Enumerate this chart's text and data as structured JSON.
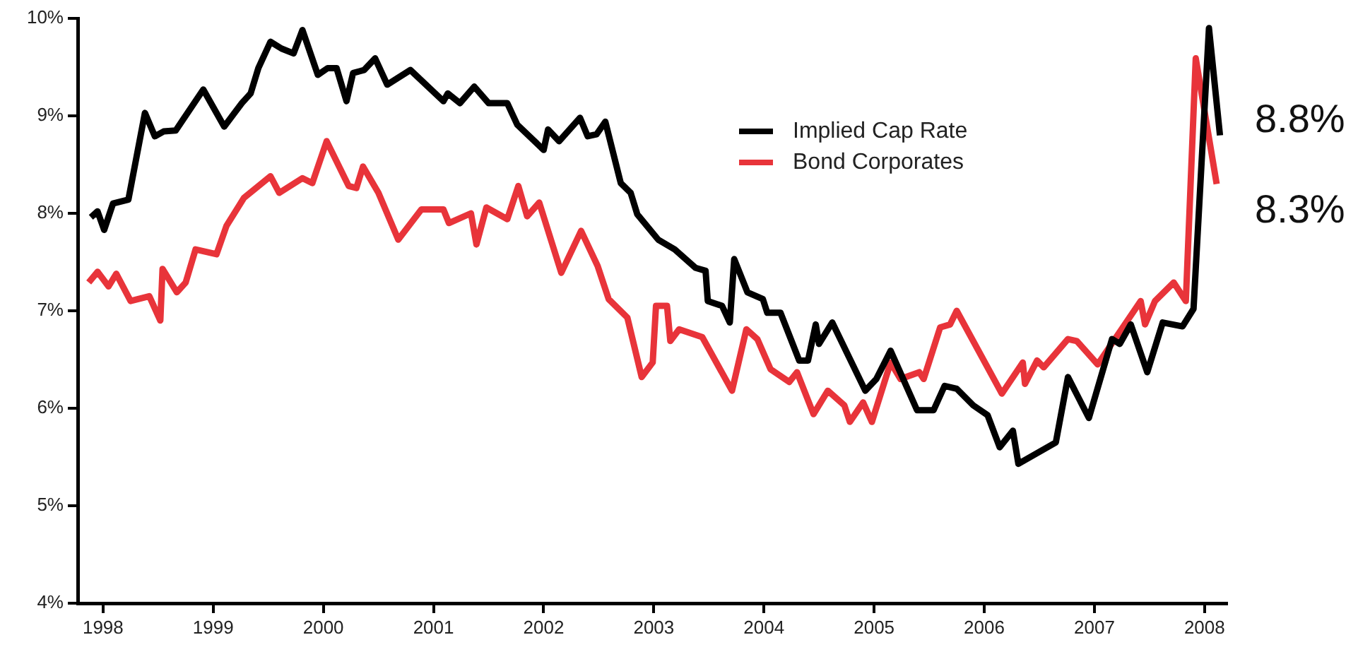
{
  "chart_data": {
    "type": "line",
    "xlim": [
      1997.77,
      2008.2
    ],
    "xticks": [
      1998,
      1999,
      2000,
      2001,
      2002,
      2003,
      2004,
      2005,
      2006,
      2007,
      2008
    ],
    "ylim": [
      4,
      10
    ],
    "yticks": [
      {
        "value": 4,
        "label": "4%"
      },
      {
        "value": 5,
        "label": "5%"
      },
      {
        "value": 6,
        "label": "6%"
      },
      {
        "value": 7,
        "label": "7%"
      },
      {
        "value": 8,
        "label": "8%"
      },
      {
        "value": 9,
        "label": "9%"
      },
      {
        "value": 10,
        "label": "10%"
      }
    ],
    "grid": false,
    "legend": "top right",
    "marker": "none",
    "line_style": "solid",
    "annotations": [
      "8.8%",
      "8.3%"
    ],
    "series": [
      {
        "name": "Implied Cap Rate",
        "color": "#000000",
        "x": [
          1997.89,
          1997.95,
          1998.01,
          1998.09,
          1998.23,
          1998.38,
          1998.47,
          1998.55,
          1998.66,
          1998.91,
          1999.1,
          1999.26,
          1999.34,
          1999.41,
          1999.52,
          1999.62,
          1999.73,
          1999.81,
          1999.95,
          2000.04,
          2000.12,
          2000.21,
          2000.27,
          2000.37,
          2000.47,
          2000.58,
          2000.79,
          2001.09,
          2001.13,
          2001.24,
          2001.37,
          2001.5,
          2001.67,
          2001.76,
          2002.0,
          2002.04,
          2002.14,
          2002.33,
          2002.4,
          2002.48,
          2002.56,
          2002.7,
          2002.79,
          2002.85,
          2003.04,
          2003.19,
          2003.38,
          2003.47,
          2003.49,
          2003.62,
          2003.69,
          2003.73,
          2003.85,
          2003.99,
          2004.03,
          2004.15,
          2004.32,
          2004.4,
          2004.47,
          2004.5,
          2004.62,
          2004.92,
          2005.02,
          2005.15,
          2005.39,
          2005.54,
          2005.64,
          2005.75,
          2005.9,
          2006.03,
          2006.14,
          2006.26,
          2006.31,
          2006.65,
          2006.76,
          2006.95,
          2007.16,
          2007.23,
          2007.33,
          2007.48,
          2007.62,
          2007.8,
          2007.9,
          2008.04,
          2008.14
        ],
        "values": [
          7.96,
          8.02,
          7.83,
          8.1,
          8.14,
          9.03,
          8.79,
          8.84,
          8.85,
          9.27,
          8.89,
          9.13,
          9.23,
          9.49,
          9.76,
          9.69,
          9.64,
          9.88,
          9.42,
          9.49,
          9.49,
          9.15,
          9.44,
          9.47,
          9.59,
          9.32,
          9.47,
          9.15,
          9.23,
          9.13,
          9.3,
          9.13,
          9.13,
          8.91,
          8.65,
          8.86,
          8.74,
          8.98,
          8.79,
          8.81,
          8.94,
          8.31,
          8.21,
          7.99,
          7.73,
          7.63,
          7.44,
          7.41,
          7.1,
          7.05,
          6.88,
          7.53,
          7.19,
          7.12,
          6.98,
          6.98,
          6.49,
          6.49,
          6.86,
          6.66,
          6.88,
          6.18,
          6.3,
          6.59,
          5.98,
          5.98,
          6.23,
          6.2,
          6.03,
          5.93,
          5.6,
          5.77,
          5.43,
          5.65,
          6.32,
          5.9,
          6.71,
          6.66,
          6.86,
          6.37,
          6.88,
          6.84,
          7.02,
          9.9,
          8.8
        ]
      },
      {
        "name": "Bond Corporates",
        "color": "#e8343a",
        "x": [
          1997.87,
          1997.95,
          1998.05,
          1998.12,
          1998.25,
          1998.42,
          1998.52,
          1998.54,
          1998.67,
          1998.75,
          1998.84,
          1999.03,
          1999.12,
          1999.28,
          1999.52,
          1999.6,
          1999.81,
          1999.9,
          2000.03,
          2000.23,
          2000.3,
          2000.36,
          2000.5,
          2000.68,
          2000.89,
          2001.09,
          2001.14,
          2001.34,
          2001.39,
          2001.48,
          2001.67,
          2001.77,
          2001.85,
          2001.96,
          2002.16,
          2002.34,
          2002.49,
          2002.59,
          2002.76,
          2002.89,
          2002.99,
          2003.02,
          2003.12,
          2003.15,
          2003.23,
          2003.44,
          2003.71,
          2003.84,
          2003.94,
          2004.06,
          2004.23,
          2004.3,
          2004.45,
          2004.58,
          2004.73,
          2004.78,
          2004.9,
          2004.98,
          2005.15,
          2005.24,
          2005.41,
          2005.45,
          2005.6,
          2005.69,
          2005.75,
          2006.16,
          2006.35,
          2006.37,
          2006.48,
          2006.54,
          2006.76,
          2006.84,
          2007.03,
          2007.42,
          2007.46,
          2007.55,
          2007.72,
          2007.83,
          2007.92,
          2008.11
        ],
        "values": [
          7.29,
          7.4,
          7.25,
          7.38,
          7.1,
          7.15,
          6.9,
          7.43,
          7.19,
          7.29,
          7.63,
          7.58,
          7.87,
          8.16,
          8.38,
          8.21,
          8.36,
          8.31,
          8.74,
          8.28,
          8.26,
          8.48,
          8.21,
          7.73,
          8.04,
          8.04,
          7.9,
          8.0,
          7.68,
          8.06,
          7.94,
          8.28,
          7.97,
          8.11,
          7.39,
          7.82,
          7.46,
          7.12,
          6.93,
          6.32,
          6.47,
          7.05,
          7.05,
          6.69,
          6.81,
          6.73,
          6.18,
          6.81,
          6.71,
          6.4,
          6.27,
          6.37,
          5.94,
          6.18,
          6.03,
          5.86,
          6.06,
          5.86,
          6.47,
          6.3,
          6.37,
          6.3,
          6.83,
          6.86,
          7.0,
          6.15,
          6.47,
          6.25,
          6.49,
          6.42,
          6.71,
          6.69,
          6.45,
          7.1,
          6.86,
          7.1,
          7.29,
          7.1,
          9.59,
          8.3
        ]
      }
    ]
  }
}
